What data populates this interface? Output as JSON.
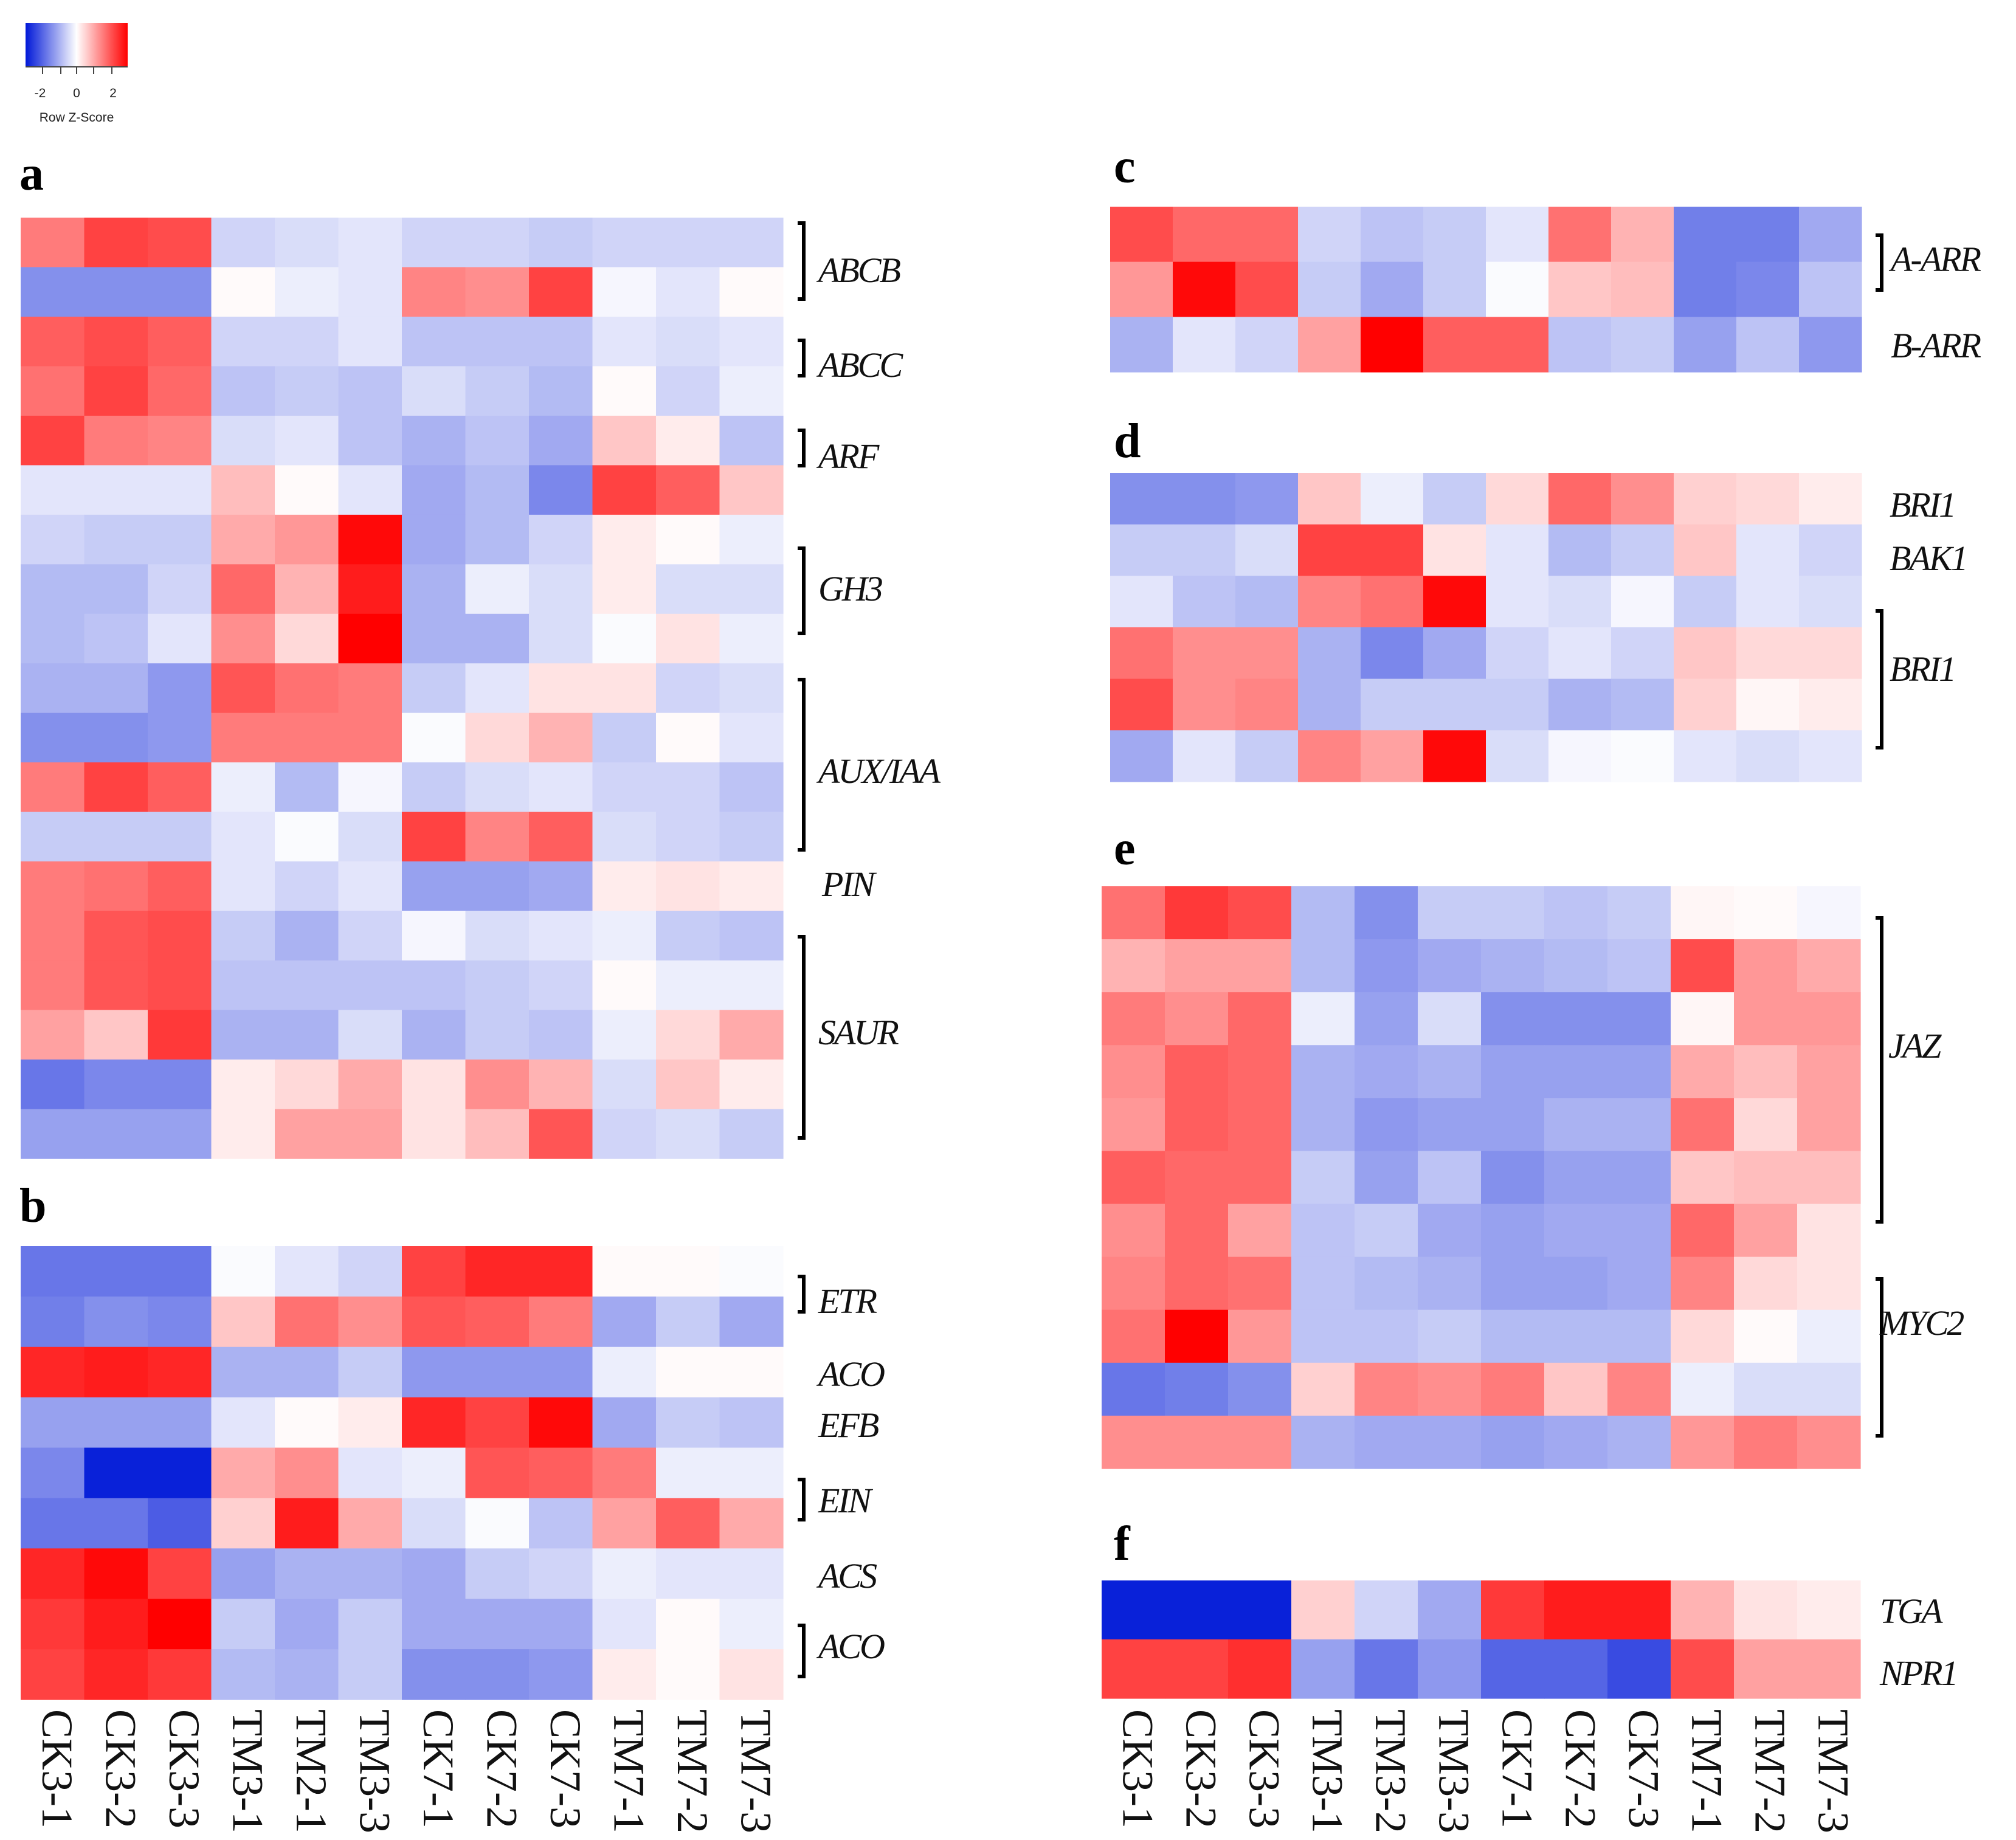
{
  "key": {
    "ticks": [
      "-2",
      "0",
      "2"
    ],
    "label": "Row Z-Score",
    "low_color": "#0018d8",
    "mid_color": "#ffffff",
    "high_color": "#ff0000"
  },
  "chart_data": [
    {
      "type": "heatmap",
      "panel": "a",
      "columns": [
        "CK3-1",
        "CK3-2",
        "CK3-3",
        "TM3-1",
        "TM2-1",
        "TM3-3",
        "CK7-1",
        "CK7-2",
        "CK7-3",
        "TM7-1",
        "TM7-2",
        "TM7-3"
      ],
      "z": [
        [
          1.4,
          2.0,
          1.9,
          -0.5,
          -0.4,
          -0.3,
          -0.5,
          -0.5,
          -0.6,
          -0.5,
          -0.5,
          -0.5
        ],
        [
          -1.3,
          -1.3,
          -1.3,
          0.05,
          -0.2,
          -0.3,
          1.3,
          1.2,
          2.0,
          -0.1,
          -0.3,
          0.05
        ],
        [
          1.7,
          1.9,
          1.7,
          -0.5,
          -0.5,
          -0.3,
          -0.7,
          -0.7,
          -0.7,
          -0.3,
          -0.4,
          -0.3
        ],
        [
          1.5,
          2.0,
          1.6,
          -0.7,
          -0.6,
          -0.7,
          -0.4,
          -0.6,
          -0.8,
          0.05,
          -0.5,
          -0.2
        ],
        [
          2.0,
          1.4,
          1.3,
          -0.4,
          -0.3,
          -0.7,
          -0.9,
          -0.7,
          -1.0,
          0.6,
          0.2,
          -0.7
        ],
        [
          -0.3,
          -0.3,
          -0.3,
          0.7,
          0.05,
          -0.3,
          -1.0,
          -0.8,
          -1.4,
          2.0,
          1.7,
          0.6
        ],
        [
          -0.5,
          -0.6,
          -0.6,
          0.9,
          1.1,
          2.6,
          -1.0,
          -0.8,
          -0.5,
          0.2,
          0.05,
          -0.2
        ],
        [
          -0.8,
          -0.8,
          -0.5,
          1.6,
          0.8,
          2.4,
          -0.9,
          -0.2,
          -0.4,
          0.2,
          -0.4,
          -0.4
        ],
        [
          -0.8,
          -0.7,
          -0.3,
          1.2,
          0.4,
          2.7,
          -0.9,
          -0.9,
          -0.4,
          -0.05,
          0.3,
          -0.2
        ],
        [
          -0.9,
          -0.9,
          -1.2,
          1.8,
          1.5,
          1.4,
          -0.6,
          -0.3,
          0.3,
          0.3,
          -0.5,
          -0.4
        ],
        [
          -1.3,
          -1.3,
          -1.2,
          1.4,
          1.4,
          1.4,
          -0.05,
          0.4,
          0.8,
          -0.6,
          0.05,
          -0.3
        ],
        [
          1.4,
          2.0,
          1.7,
          -0.2,
          -0.8,
          -0.1,
          -0.6,
          -0.4,
          -0.3,
          -0.5,
          -0.5,
          -0.7
        ],
        [
          -0.6,
          -0.6,
          -0.6,
          -0.3,
          -0.05,
          -0.4,
          2.0,
          1.3,
          1.7,
          -0.4,
          -0.5,
          -0.6
        ],
        [
          1.4,
          1.5,
          1.7,
          -0.3,
          -0.5,
          -0.3,
          -1.1,
          -1.1,
          -1.0,
          0.2,
          0.3,
          0.2
        ],
        [
          1.4,
          1.8,
          1.9,
          -0.6,
          -0.9,
          -0.5,
          -0.1,
          -0.4,
          -0.3,
          -0.2,
          -0.6,
          -0.7
        ],
        [
          1.4,
          1.8,
          1.9,
          -0.7,
          -0.7,
          -0.7,
          -0.7,
          -0.6,
          -0.5,
          0.05,
          -0.2,
          -0.2
        ],
        [
          1.0,
          0.6,
          2.1,
          -0.9,
          -0.9,
          -0.4,
          -0.9,
          -0.6,
          -0.7,
          -0.2,
          0.4,
          0.9
        ],
        [
          -1.6,
          -1.4,
          -1.4,
          0.2,
          0.4,
          0.9,
          0.3,
          1.2,
          0.8,
          -0.4,
          0.6,
          0.2
        ],
        [
          -1.1,
          -1.1,
          -1.1,
          0.2,
          1.0,
          1.0,
          0.3,
          0.7,
          1.8,
          -0.5,
          -0.4,
          -0.6
        ]
      ],
      "gene_labels": [
        "ABCB",
        "ABCC",
        "ARF",
        "GH3",
        "AUX/IAA",
        "PIN",
        "SAUR"
      ]
    },
    {
      "type": "heatmap",
      "panel": "b",
      "columns": [
        "CK3-1",
        "CK3-2",
        "CK3-3",
        "TM3-1",
        "TM2-1",
        "TM3-3",
        "CK7-1",
        "CK7-2",
        "CK7-3",
        "TM7-1",
        "TM7-2",
        "TM7-3"
      ],
      "z": [
        [
          -1.6,
          -1.6,
          -1.6,
          -0.05,
          -0.3,
          -0.5,
          2.0,
          2.3,
          2.3,
          0.05,
          0.05,
          -0.05
        ],
        [
          -1.5,
          -1.3,
          -1.4,
          0.6,
          1.5,
          1.2,
          1.8,
          1.7,
          1.4,
          -1.0,
          -0.6,
          -1.0
        ],
        [
          2.3,
          2.4,
          2.3,
          -0.9,
          -0.9,
          -0.6,
          -1.2,
          -1.2,
          -1.2,
          -0.2,
          0.05,
          0.05
        ],
        [
          -1.1,
          -1.1,
          -1.1,
          -0.3,
          0.05,
          0.2,
          2.3,
          2.0,
          2.6,
          -1.0,
          -0.6,
          -0.7
        ],
        [
          -1.4,
          -2.6,
          -2.6,
          0.9,
          1.2,
          -0.3,
          -0.2,
          1.8,
          1.7,
          1.4,
          -0.2,
          -0.2
        ],
        [
          -1.6,
          -1.6,
          -1.9,
          0.5,
          2.4,
          0.9,
          -0.4,
          -0.05,
          -0.7,
          1.0,
          1.7,
          0.9
        ],
        [
          2.3,
          2.6,
          2.0,
          -1.1,
          -0.9,
          -0.9,
          -1.0,
          -0.6,
          -0.5,
          -0.2,
          -0.3,
          -0.3
        ],
        [
          2.1,
          2.4,
          2.7,
          -0.6,
          -1.0,
          -0.6,
          -1.0,
          -1.0,
          -1.0,
          -0.3,
          0.05,
          -0.2
        ],
        [
          2.0,
          2.3,
          2.1,
          -0.8,
          -0.9,
          -0.6,
          -1.3,
          -1.3,
          -1.2,
          0.2,
          0.05,
          0.3
        ]
      ],
      "gene_labels": [
        "ETR",
        "ACO",
        "EFB",
        "EIN",
        "ACS",
        "ACO"
      ]
    },
    {
      "type": "heatmap",
      "panel": "c",
      "columns": [
        "CK3-1",
        "CK3-2",
        "CK3-3",
        "TM3-1",
        "TM3-2",
        "TM3-3",
        "CK7-1",
        "CK7-2",
        "CK7-3",
        "TM7-1",
        "TM7-2",
        "TM7-3"
      ],
      "z": [
        [
          1.9,
          1.6,
          1.6,
          -0.5,
          -0.7,
          -0.6,
          -0.3,
          1.5,
          0.8,
          -1.5,
          -1.5,
          -1.0
        ],
        [
          1.1,
          2.6,
          1.9,
          -0.6,
          -1.0,
          -0.6,
          -0.05,
          0.6,
          0.7,
          -1.5,
          -1.4,
          -0.7
        ],
        [
          -0.9,
          -0.3,
          -0.5,
          1.0,
          2.7,
          1.7,
          1.7,
          -0.7,
          -0.6,
          -1.1,
          -0.7,
          -1.2
        ]
      ],
      "gene_labels": [
        "A-ARR",
        "B-ARR"
      ]
    },
    {
      "type": "heatmap",
      "panel": "d",
      "columns": [
        "CK3-1",
        "CK3-2",
        "CK3-3",
        "TM3-1",
        "TM3-2",
        "TM3-3",
        "CK7-1",
        "CK7-2",
        "CK7-3",
        "TM7-1",
        "TM7-2",
        "TM7-3"
      ],
      "z": [
        [
          -1.3,
          -1.3,
          -1.2,
          0.6,
          -0.2,
          -0.6,
          0.4,
          1.6,
          1.2,
          0.5,
          0.4,
          0.2
        ],
        [
          -0.6,
          -0.6,
          -0.4,
          2.0,
          2.0,
          0.3,
          -0.3,
          -0.8,
          -0.6,
          0.6,
          -0.3,
          -0.5
        ],
        [
          -0.3,
          -0.7,
          -0.8,
          1.3,
          1.5,
          2.6,
          -0.3,
          -0.4,
          -0.1,
          -0.6,
          -0.3,
          -0.4
        ],
        [
          1.5,
          1.2,
          1.2,
          -0.9,
          -1.4,
          -1.0,
          -0.5,
          -0.3,
          -0.5,
          0.6,
          0.4,
          0.4
        ],
        [
          1.9,
          1.2,
          1.3,
          -0.9,
          -0.6,
          -0.6,
          -0.6,
          -0.9,
          -0.8,
          0.5,
          0.1,
          0.2
        ],
        [
          -1.0,
          -0.3,
          -0.6,
          1.3,
          1.0,
          2.6,
          -0.4,
          -0.1,
          -0.05,
          -0.3,
          -0.4,
          -0.3
        ]
      ],
      "gene_labels": [
        "BRI1",
        "BAK1",
        "BRI1"
      ]
    },
    {
      "type": "heatmap",
      "panel": "e",
      "columns": [
        "CK3-1",
        "CK3-2",
        "CK3-3",
        "TM3-1",
        "TM3-2",
        "TM3-3",
        "CK7-1",
        "CK7-2",
        "CK7-3",
        "TM7-1",
        "TM7-2",
        "TM7-3"
      ],
      "z": [
        [
          1.5,
          2.1,
          1.9,
          -0.8,
          -1.3,
          -0.6,
          -0.6,
          -0.7,
          -0.6,
          0.1,
          0.05,
          -0.1
        ],
        [
          0.8,
          1.0,
          1.0,
          -0.8,
          -1.2,
          -1.0,
          -0.9,
          -0.8,
          -0.7,
          1.9,
          1.1,
          0.9
        ],
        [
          1.4,
          1.2,
          1.6,
          -0.2,
          -1.1,
          -0.4,
          -1.3,
          -1.3,
          -1.3,
          0.1,
          1.1,
          1.1
        ],
        [
          1.2,
          1.7,
          1.6,
          -0.9,
          -1.0,
          -0.9,
          -1.1,
          -1.1,
          -1.1,
          0.9,
          0.7,
          1.0
        ],
        [
          1.1,
          1.7,
          1.6,
          -0.9,
          -1.2,
          -1.1,
          -1.1,
          -0.9,
          -0.9,
          1.5,
          0.4,
          1.0
        ],
        [
          1.7,
          1.6,
          1.6,
          -0.6,
          -1.1,
          -0.7,
          -1.3,
          -1.1,
          -1.1,
          0.6,
          0.7,
          0.7
        ],
        [
          1.2,
          1.6,
          1.0,
          -0.7,
          -0.6,
          -1.0,
          -1.1,
          -1.0,
          -1.0,
          1.6,
          1.0,
          0.3
        ],
        [
          1.3,
          1.6,
          1.5,
          -0.7,
          -0.8,
          -0.9,
          -1.1,
          -1.1,
          -1.0,
          1.3,
          0.4,
          0.3
        ],
        [
          1.5,
          2.7,
          1.1,
          -0.7,
          -0.7,
          -0.6,
          -0.8,
          -0.8,
          -0.8,
          0.4,
          0.05,
          -0.2
        ],
        [
          -1.6,
          -1.5,
          -1.3,
          0.5,
          1.3,
          1.2,
          1.4,
          0.6,
          1.3,
          -0.2,
          -0.4,
          -0.4
        ],
        [
          1.2,
          1.2,
          1.2,
          -0.9,
          -1.0,
          -1.0,
          -1.1,
          -1.0,
          -0.9,
          1.1,
          1.4,
          1.2
        ]
      ],
      "gene_labels": [
        "JAZ",
        "MYC2"
      ]
    },
    {
      "type": "heatmap",
      "panel": "f",
      "columns": [
        "CK3-1",
        "CK3-2",
        "CK3-3",
        "TM3-1",
        "TM3-2",
        "TM3-3",
        "CK7-1",
        "CK7-2",
        "CK7-3",
        "TM7-1",
        "TM7-2",
        "TM7-3"
      ],
      "z": [
        [
          -2.6,
          -2.6,
          -2.6,
          0.5,
          -0.5,
          -1.0,
          2.1,
          2.4,
          2.4,
          0.8,
          0.3,
          0.2
        ],
        [
          2.0,
          2.0,
          2.2,
          -1.1,
          -1.6,
          -1.2,
          -1.8,
          -1.8,
          -2.1,
          1.9,
          1.0,
          1.0
        ]
      ],
      "gene_labels": [
        "TGA",
        "NPR1"
      ]
    }
  ]
}
